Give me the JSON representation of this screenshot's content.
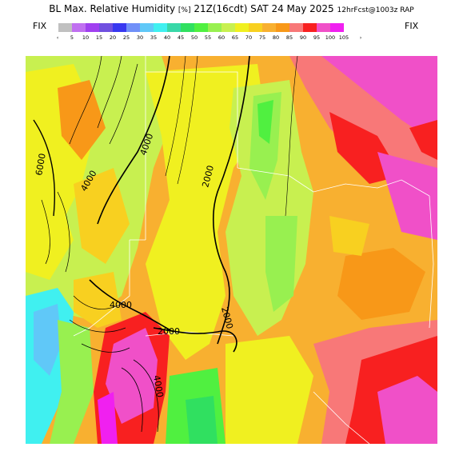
{
  "header": {
    "product": "BL Max. Relative Humidity",
    "unit": "[%]",
    "valid": "21Z(16cdt) SAT 24 May 2025",
    "forecast": "12hrFcst@1003z RAP"
  },
  "legend": {
    "fix_left": "FIX",
    "fix_right": "FIX",
    "under_arrow": "‹",
    "over_arrow": "›",
    "bins": [
      {
        "label": "5",
        "color": "#c0c0c0"
      },
      {
        "label": "10",
        "color": "#c070f0"
      },
      {
        "label": "15",
        "color": "#a040f0"
      },
      {
        "label": "20",
        "color": "#7050e0"
      },
      {
        "label": "25",
        "color": "#3838f0"
      },
      {
        "label": "30",
        "color": "#7090f8"
      },
      {
        "label": "35",
        "color": "#60c8f8"
      },
      {
        "label": "40",
        "color": "#40f0f0"
      },
      {
        "label": "45",
        "color": "#38d8a8"
      },
      {
        "label": "50",
        "color": "#30e060"
      },
      {
        "label": "55",
        "color": "#50f040"
      },
      {
        "label": "60",
        "color": "#98f050"
      },
      {
        "label": "65",
        "color": "#c8f050"
      },
      {
        "label": "70",
        "color": "#f0f020"
      },
      {
        "label": "75",
        "color": "#f8d020"
      },
      {
        "label": "80",
        "color": "#f8b030"
      },
      {
        "label": "85",
        "color": "#f89818"
      },
      {
        "label": "90",
        "color": "#f87878"
      },
      {
        "label": "95",
        "color": "#f82020"
      },
      {
        "label": "100",
        "color": "#f050c8"
      },
      {
        "label": "105",
        "color": "#f020f0"
      }
    ]
  },
  "contours": {
    "labels": [
      "2000",
      "2000",
      "2000",
      "4000",
      "4000",
      "4000",
      "4000",
      "6000"
    ]
  }
}
